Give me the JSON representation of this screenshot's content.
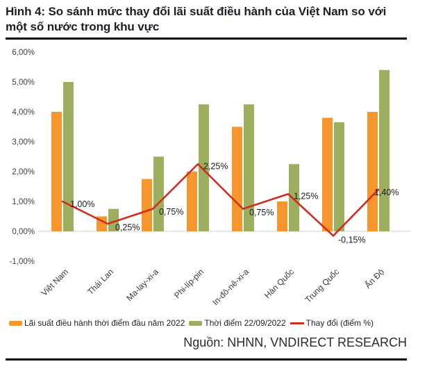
{
  "header": {
    "title": "Hình 4: So sánh mức thay đổi lãi suất điều hành của Việt Nam so với một số nước trong khu vực"
  },
  "source": {
    "label": "Nguồn: NHNN, VNDIRECT RESEARCH"
  },
  "chart_data": {
    "type": "bar",
    "subtype": "grouped bars with change line overlay",
    "categories": [
      "Việt Nam",
      "Thái Lan",
      "Ma-lay-xi-a",
      "Phi-líp-pin",
      "In-đô-nê-xi-a",
      "Hàn Quốc",
      "Trung Quốc",
      "Ấn Độ"
    ],
    "series": [
      {
        "name": "Lãi suất điều hành thời điểm đầu năm 2022",
        "type": "bar",
        "color": "#F6962D",
        "values": [
          4.0,
          0.5,
          1.75,
          2.0,
          3.5,
          1.0,
          3.8,
          4.0
        ]
      },
      {
        "name": "Thời điểm 22/09/2022",
        "type": "bar",
        "color": "#9EAE5F",
        "values": [
          5.0,
          0.75,
          2.5,
          4.25,
          4.25,
          2.25,
          3.65,
          5.4
        ]
      },
      {
        "name": "Thay đổi (điểm %)",
        "type": "line",
        "color": "#D22B20",
        "values": [
          1.0,
          0.25,
          0.75,
          2.25,
          0.75,
          1.25,
          -0.15,
          1.4
        ],
        "point_labels": [
          "1,00%",
          "0,25%",
          "0,75%",
          "2,25%",
          "0,75%",
          "1,25%",
          "-0,15%",
          "1,40%"
        ]
      }
    ],
    "ylim": [
      -1,
      6
    ],
    "y_ticks": [
      {
        "value": 6,
        "label": "6,00%"
      },
      {
        "value": 5,
        "label": "5,00%"
      },
      {
        "value": 4,
        "label": "4,00%"
      },
      {
        "value": 3,
        "label": "3,00%"
      },
      {
        "value": 2,
        "label": "2,00%"
      },
      {
        "value": 1,
        "label": "1,00%"
      },
      {
        "value": 0,
        "label": "0,00%"
      },
      {
        "value": -1,
        "label": "-1,00%"
      }
    ],
    "grid": false,
    "legend_position": "bottom"
  }
}
